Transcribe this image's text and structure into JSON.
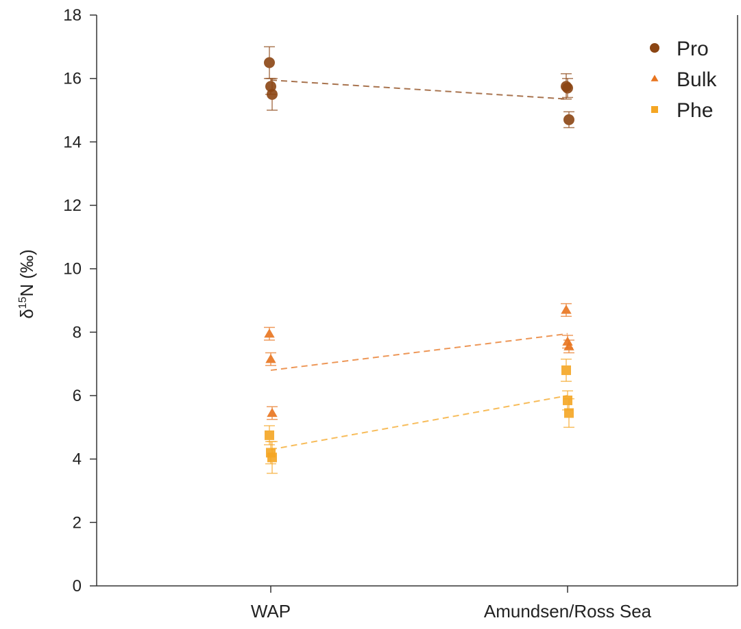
{
  "chart_data": {
    "type": "scatter",
    "title": "",
    "ylabel_prefix": "δ",
    "ylabel_sup": "15",
    "ylabel_main": "N (‰)",
    "categories": [
      "WAP",
      "Amundsen/Ross Sea"
    ],
    "ylim": [
      0,
      18
    ],
    "yticks": [
      "0",
      "2",
      "4",
      "6",
      "8",
      "10",
      "12",
      "14",
      "16",
      "18"
    ],
    "grid": false,
    "legend_position": "top-right",
    "series": [
      {
        "name": "Pro",
        "marker": "circle",
        "color": "#8B4513",
        "points": [
          {
            "cat": 0,
            "y": 16.5,
            "err": 0.5
          },
          {
            "cat": 0,
            "y": 15.75,
            "err": 0.25
          },
          {
            "cat": 0,
            "y": 15.5,
            "err": 0.5
          },
          {
            "cat": 1,
            "y": 15.75,
            "err": 0.4
          },
          {
            "cat": 1,
            "y": 15.7,
            "err": 0.3
          },
          {
            "cat": 1,
            "y": 14.7,
            "err": 0.25
          }
        ],
        "trend": [
          15.95,
          15.35
        ]
      },
      {
        "name": "Bulk",
        "marker": "triangle",
        "color": "#E8741E",
        "points": [
          {
            "cat": 0,
            "y": 7.95,
            "err": 0.2
          },
          {
            "cat": 0,
            "y": 7.15,
            "err": 0.2
          },
          {
            "cat": 0,
            "y": 5.45,
            "err": 0.2
          },
          {
            "cat": 1,
            "y": 8.7,
            "err": 0.2
          },
          {
            "cat": 1,
            "y": 7.7,
            "err": 0.2
          },
          {
            "cat": 1,
            "y": 7.55,
            "err": 0.2
          }
        ],
        "trend": [
          6.8,
          7.95
        ]
      },
      {
        "name": "Phe",
        "marker": "square",
        "color": "#F5A623",
        "points": [
          {
            "cat": 0,
            "y": 4.75,
            "err": 0.3
          },
          {
            "cat": 0,
            "y": 4.2,
            "err": 0.35
          },
          {
            "cat": 0,
            "y": 4.05,
            "err": 0.5
          },
          {
            "cat": 1,
            "y": 6.8,
            "err": 0.35
          },
          {
            "cat": 1,
            "y": 5.85,
            "err": 0.3
          },
          {
            "cat": 1,
            "y": 5.45,
            "err": 0.45
          }
        ],
        "trend": [
          4.3,
          6.0
        ]
      }
    ]
  }
}
